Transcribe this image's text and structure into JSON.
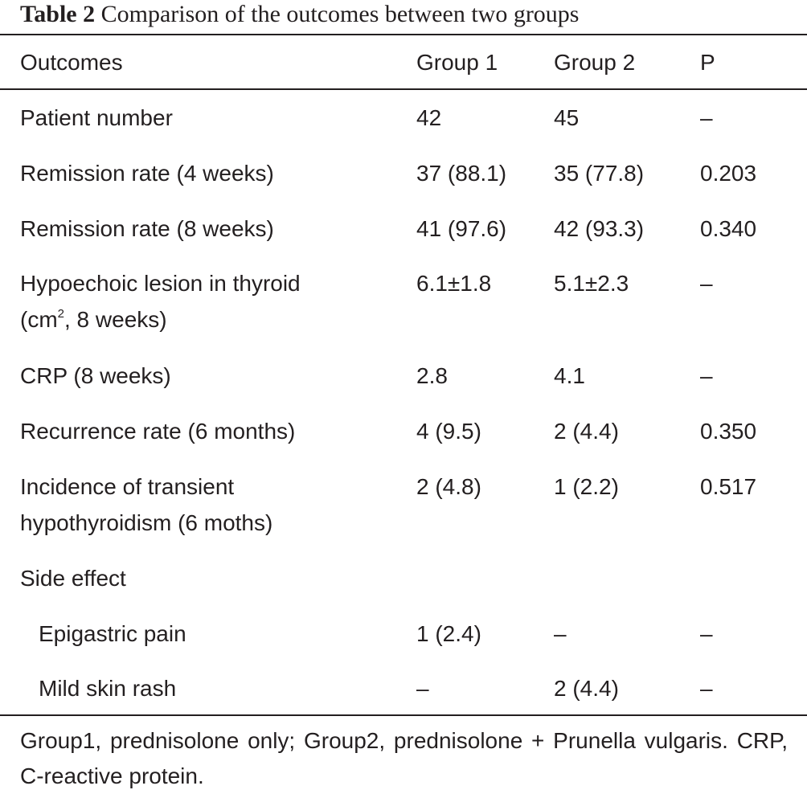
{
  "caption": {
    "label": "Table 2",
    "text": "Comparison of the outcomes between two groups"
  },
  "columns": [
    "Outcomes",
    "Group 1",
    "Group 2",
    "P"
  ],
  "rows": [
    {
      "outcome": "Patient number",
      "group1": "42",
      "group2": "45",
      "p": "–"
    },
    {
      "outcome": "Remission rate (4 weeks)",
      "group1": "37 (88.1)",
      "group2": "35 (77.8)",
      "p": "0.203"
    },
    {
      "outcome": "Remission rate (8 weeks)",
      "group1": "41 (97.6)",
      "group2": "42 (93.3)",
      "p": "0.340"
    },
    {
      "outcome_line1": "Hypoechoic lesion in thyroid",
      "outcome_line2_pre": "(cm",
      "outcome_line2_sup": "2",
      "outcome_line2_post": ", 8 weeks)",
      "group1": "6.1±1.8",
      "group2": "5.1±2.3",
      "p": "–"
    },
    {
      "outcome": "CRP (8 weeks)",
      "group1": "2.8",
      "group2": "4.1",
      "p": "–"
    },
    {
      "outcome": "Recurrence rate (6 months)",
      "group1": "4 (9.5)",
      "group2": "2 (4.4)",
      "p": "0.350"
    },
    {
      "outcome_line1": "Incidence of transient",
      "outcome_line2": "hypothyroidism (6 moths)",
      "group1": "2 (4.8)",
      "group2": "1 (2.2)",
      "p": "0.517"
    },
    {
      "outcome": "Side effect"
    },
    {
      "outcome": "Epigastric pain",
      "group1": "1 (2.4)",
      "group2": "–",
      "p": "–"
    },
    {
      "outcome": "Mild skin rash",
      "group1": "–",
      "group2": "2 (4.4)",
      "p": "–"
    }
  ],
  "footnote": "Group1, prednisolone only; Group2, prednisolone + Prunella vulgaris. CRP, C-reactive protein."
}
